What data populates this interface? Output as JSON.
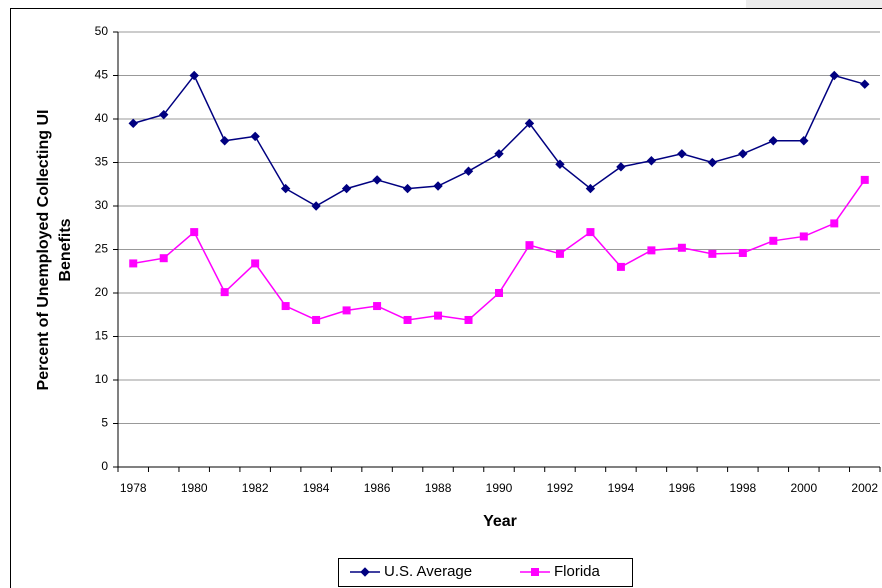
{
  "chart_data": {
    "type": "line",
    "categories": [
      "1978",
      null,
      "1980",
      null,
      "1982",
      null,
      "1984",
      null,
      "1986",
      null,
      "1988",
      null,
      "1990",
      null,
      "1992",
      null,
      "1994",
      null,
      "1996",
      null,
      "1998",
      null,
      "2000",
      null,
      "2002"
    ],
    "series": [
      {
        "name": "U.S. Average",
        "color": "#000080",
        "marker": "diamond",
        "values": [
          39.5,
          40.5,
          45,
          37.5,
          38,
          32,
          30,
          32,
          33,
          32,
          32.3,
          34,
          36,
          39.5,
          34.8,
          32,
          34.5,
          35.2,
          36,
          35,
          36,
          37.5,
          37.5,
          45,
          44
        ]
      },
      {
        "name": "Florida",
        "color": "#ff00ff",
        "marker": "square",
        "values": [
          23.4,
          24,
          27,
          20.1,
          23.4,
          18.5,
          16.9,
          18,
          18.5,
          16.9,
          17.4,
          16.9,
          20,
          25.5,
          24.5,
          27,
          23,
          24.9,
          25.2,
          24.5,
          24.6,
          26,
          26.5,
          28,
          33
        ]
      }
    ],
    "xlabel": "Year",
    "ylabel": [
      "Percent of Unemployed Collecting UI",
      "Benefits"
    ],
    "ylim": [
      0,
      50
    ],
    "yticks": [
      0,
      5,
      10,
      15,
      20,
      25,
      30,
      35,
      40,
      45,
      50
    ],
    "grid": true,
    "legend": "bottom"
  }
}
